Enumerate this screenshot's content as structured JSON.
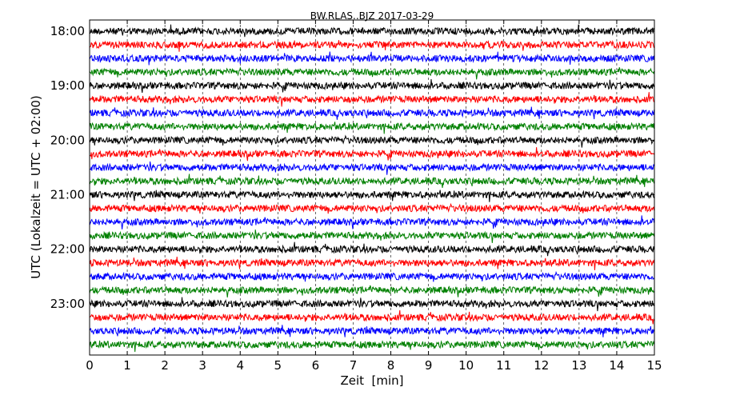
{
  "chart_data": {
    "type": "line",
    "title": "BW.RLAS..BJZ 2017-03-29",
    "xlabel": "Zeit  [min]",
    "ylabel": "UTC (Lokalzeit = UTC + 02:00)",
    "xlim": [
      0,
      15
    ],
    "x_ticks": [
      "0",
      "1",
      "2",
      "3",
      "4",
      "5",
      "6",
      "7",
      "8",
      "9",
      "10",
      "11",
      "12",
      "13",
      "14",
      "15"
    ],
    "y_tick_labels": [
      "18:00",
      "19:00",
      "20:00",
      "21:00",
      "22:00",
      "23:00"
    ],
    "trace_start_times": [
      "18:00",
      "18:15",
      "18:30",
      "18:45",
      "19:00",
      "19:15",
      "19:30",
      "19:45",
      "20:00",
      "20:15",
      "20:30",
      "20:45",
      "21:00",
      "21:15",
      "21:30",
      "21:45",
      "22:00",
      "22:15",
      "22:30",
      "22:45",
      "23:00",
      "23:15",
      "23:30",
      "23:45"
    ],
    "trace_colors": [
      "#000000",
      "#ff0000",
      "#0000ff",
      "#008000"
    ],
    "trace_minutes_per_line": 15,
    "grid": "vertical dashed at each minute",
    "signal": "background noise, roughly constant amplitude"
  }
}
